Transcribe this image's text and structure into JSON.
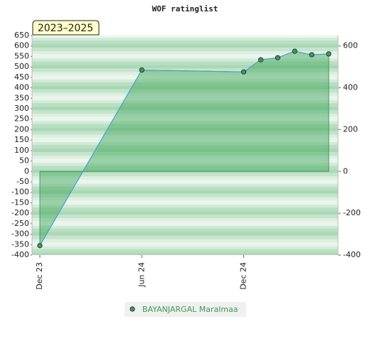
{
  "chart_data": {
    "type": "area",
    "title": "WOF ratinglist",
    "badge": "2023–2025",
    "x": [
      "2023-12",
      "2024-06",
      "2024-12",
      "2025-01",
      "2025-02",
      "2025-03",
      "2025-04",
      "2025-05"
    ],
    "xlim": [
      "2023-12",
      "2025-05"
    ],
    "xticks": [
      {
        "value": "2023-12",
        "label": "Dec 23"
      },
      {
        "value": "2024-06",
        "label": "Jun 24"
      },
      {
        "value": "2024-12",
        "label": "Dec 24"
      }
    ],
    "series": [
      {
        "name": "BAYANJARGAL Maralmaa",
        "color": "#4a9fd8",
        "marker_color": "#3f9a55",
        "values": [
          -355,
          485,
          476,
          534,
          544,
          575,
          558,
          562
        ]
      }
    ],
    "ylim": [
      -400,
      650
    ],
    "yticks": [
      -400,
      -350,
      -300,
      -250,
      -200,
      -150,
      -100,
      -50,
      0,
      50,
      100,
      150,
      200,
      250,
      300,
      350,
      400,
      450,
      500,
      550,
      600,
      650
    ],
    "y2lim": [
      -400,
      650
    ],
    "y2ticks": [
      -400,
      -200,
      0,
      200,
      400,
      600
    ],
    "fill_color": "#3aa357"
  }
}
